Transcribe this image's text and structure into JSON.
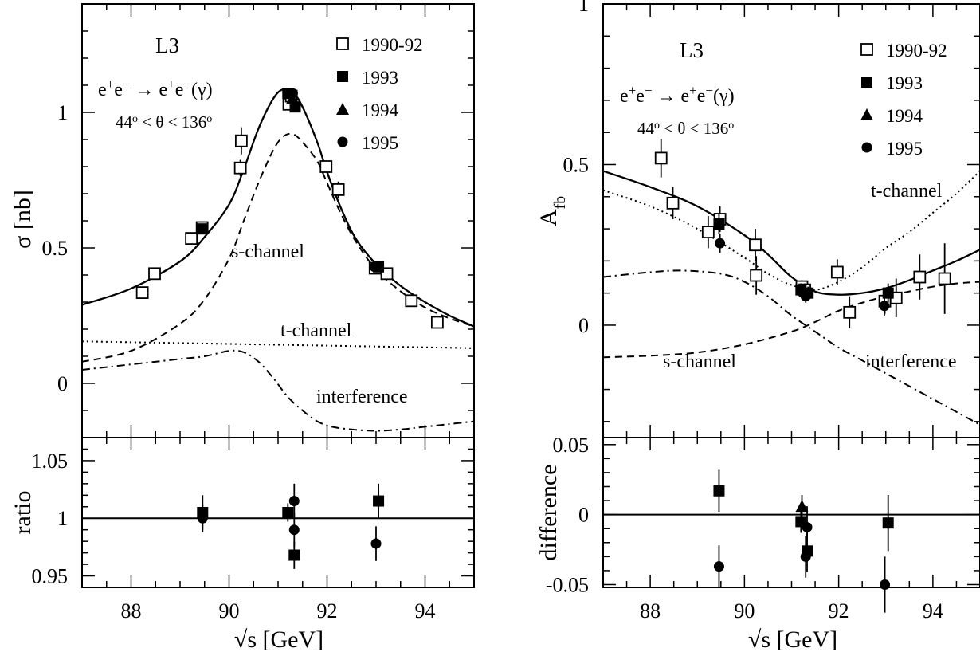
{
  "chart_data": [
    {
      "type": "line",
      "id": "left",
      "label_experiment": "L3",
      "process": {
        "base": "e",
        "arrow": "→",
        "suffix": "(γ)"
      },
      "cut": {
        "a": "44",
        "mid": " < θ < 136",
        "deg": "o"
      },
      "legend": {
        "placement": "top-right",
        "entries": [
          {
            "name": "1990-92",
            "marker": "open-square"
          },
          {
            "name": "1993",
            "marker": "filled-square"
          },
          {
            "name": "1994",
            "marker": "filled-triangle"
          },
          {
            "name": "1995",
            "marker": "filled-circle"
          }
        ]
      },
      "ylabel": "σ [nb]",
      "xlim": [
        87,
        95
      ],
      "ylim": [
        -0.2,
        1.4
      ],
      "xticks": [
        "88",
        "90",
        "92",
        "94"
      ],
      "yticks": [
        "0",
        "0.5",
        "1"
      ],
      "curve_labels": {
        "s": "s-channel",
        "t": "t-channel",
        "i": "interference"
      },
      "series": [
        {
          "name": "total",
          "style": "solid",
          "x": [
            87,
            88,
            89,
            89.5,
            90,
            90.3,
            90.6,
            90.9,
            91.1,
            91.3,
            91.5,
            91.8,
            92.0,
            92.3,
            92.6,
            93.0,
            93.5,
            94.0,
            94.5,
            95.0
          ],
          "y": [
            0.29,
            0.35,
            0.45,
            0.54,
            0.66,
            0.79,
            0.94,
            1.05,
            1.085,
            1.075,
            1.02,
            0.89,
            0.78,
            0.64,
            0.53,
            0.44,
            0.36,
            0.3,
            0.25,
            0.21
          ]
        },
        {
          "name": "s-channel",
          "style": "dashed",
          "x": [
            87,
            88,
            89,
            89.5,
            90,
            90.3,
            90.6,
            90.9,
            91.1,
            91.3,
            91.5,
            91.8,
            92.0,
            92.3,
            92.6,
            93.0,
            93.5,
            94.0,
            94.5,
            95.0
          ],
          "y": [
            0.08,
            0.12,
            0.22,
            0.31,
            0.46,
            0.6,
            0.74,
            0.86,
            0.91,
            0.92,
            0.89,
            0.82,
            0.74,
            0.62,
            0.52,
            0.42,
            0.34,
            0.28,
            0.24,
            0.21
          ]
        },
        {
          "name": "t-channel",
          "style": "dotted",
          "x": [
            87,
            95
          ],
          "y": [
            0.155,
            0.13
          ]
        },
        {
          "name": "interference",
          "style": "dashdot",
          "x": [
            87,
            88,
            89,
            89.5,
            90,
            90.3,
            90.6,
            90.9,
            91.2,
            91.5,
            91.8,
            92.1,
            92.5,
            93,
            93.5,
            94,
            94.5,
            95
          ],
          "y": [
            0.05,
            0.07,
            0.09,
            0.1,
            0.12,
            0.115,
            0.08,
            0.02,
            -0.05,
            -0.1,
            -0.14,
            -0.16,
            -0.17,
            -0.175,
            -0.17,
            -0.16,
            -0.15,
            -0.14
          ]
        }
      ],
      "points": [
        {
          "x": 88.23,
          "y": 0.335,
          "err": 0.02,
          "marker": "open-square"
        },
        {
          "x": 88.48,
          "y": 0.405,
          "err": 0.015,
          "marker": "open-square"
        },
        {
          "x": 89.23,
          "y": 0.535,
          "err": 0.02,
          "marker": "open-square"
        },
        {
          "x": 89.45,
          "y": 0.575,
          "err": 0.015,
          "marker": "open-square"
        },
        {
          "x": 90.23,
          "y": 0.795,
          "err": 0.03,
          "marker": "open-square"
        },
        {
          "x": 90.25,
          "y": 0.895,
          "err": 0.05,
          "marker": "open-square"
        },
        {
          "x": 91.22,
          "y": 1.03,
          "err": 0.015,
          "marker": "open-square"
        },
        {
          "x": 91.27,
          "y": 1.06,
          "err": 0.015,
          "marker": "open-square"
        },
        {
          "x": 91.98,
          "y": 0.8,
          "err": 0.02,
          "marker": "open-square"
        },
        {
          "x": 92.23,
          "y": 0.715,
          "err": 0.03,
          "marker": "open-square"
        },
        {
          "x": 92.98,
          "y": 0.425,
          "err": 0.015,
          "marker": "open-square"
        },
        {
          "x": 93.22,
          "y": 0.405,
          "err": 0.015,
          "marker": "open-square"
        },
        {
          "x": 93.72,
          "y": 0.305,
          "err": 0.015,
          "marker": "open-square"
        },
        {
          "x": 94.25,
          "y": 0.225,
          "err": 0.015,
          "marker": "open-square"
        },
        {
          "x": 89.46,
          "y": 0.57,
          "err": 0.01,
          "marker": "filled-square"
        },
        {
          "x": 91.2,
          "y": 1.07,
          "err": 0.01,
          "marker": "filled-square"
        },
        {
          "x": 91.35,
          "y": 1.02,
          "err": 0.01,
          "marker": "filled-square"
        },
        {
          "x": 93.05,
          "y": 0.43,
          "err": 0.01,
          "marker": "filled-square"
        },
        {
          "x": 91.29,
          "y": 1.05,
          "err": 0.01,
          "marker": "filled-triangle"
        },
        {
          "x": 91.3,
          "y": 1.07,
          "err": 0.01,
          "marker": "filled-circle"
        },
        {
          "x": 92.97,
          "y": 0.43,
          "err": 0.01,
          "marker": "filled-circle"
        }
      ],
      "sub": {
        "ylabel": "ratio",
        "ylim": [
          0.94,
          1.07
        ],
        "yticks": [
          "0.95",
          "1",
          "1.05"
        ],
        "ref": 1,
        "points": [
          {
            "x": 89.46,
            "y": 1.005,
            "err": 0.015,
            "marker": "filled-square"
          },
          {
            "x": 89.46,
            "y": 1.0,
            "err": 0.012,
            "marker": "filled-circle"
          },
          {
            "x": 91.2,
            "y": 1.005,
            "err": 0.008,
            "marker": "filled-square"
          },
          {
            "x": 91.33,
            "y": 1.015,
            "err": 0.015,
            "marker": "filled-circle"
          },
          {
            "x": 91.33,
            "y": 0.99,
            "err": 0.015,
            "marker": "filled-circle"
          },
          {
            "x": 91.33,
            "y": 0.968,
            "err": 0.012,
            "marker": "filled-square"
          },
          {
            "x": 93.0,
            "y": 0.978,
            "err": 0.015,
            "marker": "filled-circle"
          },
          {
            "x": 93.05,
            "y": 1.015,
            "err": 0.015,
            "marker": "filled-square"
          }
        ]
      },
      "xlabel": "√s [GeV]"
    },
    {
      "type": "line",
      "id": "right",
      "label_experiment": "L3",
      "process": {
        "base": "e",
        "arrow": "→",
        "suffix": "(γ)"
      },
      "cut": {
        "a": "44",
        "mid": " < θ < 136",
        "deg": "o"
      },
      "legend": {
        "placement": "top-right",
        "entries": [
          {
            "name": "1990-92",
            "marker": "open-square"
          },
          {
            "name": "1993",
            "marker": "filled-square"
          },
          {
            "name": "1994",
            "marker": "filled-triangle"
          },
          {
            "name": "1995",
            "marker": "filled-circle"
          }
        ]
      },
      "ylabel": "A",
      "ylabel_sub": "fb",
      "xlim": [
        87,
        95
      ],
      "ylim": [
        -0.35,
        1.0
      ],
      "xticks": [
        "88",
        "90",
        "92",
        "94"
      ],
      "yticks": [
        "0",
        "0.5",
        "1"
      ],
      "curve_labels": {
        "s": "s-channel",
        "t": "t-channel",
        "i": "interference"
      },
      "series": [
        {
          "name": "total",
          "style": "solid",
          "x": [
            87,
            88,
            89,
            90,
            90.5,
            91,
            91.5,
            92,
            92.5,
            93,
            93.5,
            94,
            94.5,
            95
          ],
          "y": [
            0.48,
            0.43,
            0.37,
            0.28,
            0.22,
            0.15,
            0.105,
            0.095,
            0.1,
            0.115,
            0.14,
            0.17,
            0.2,
            0.235
          ]
        },
        {
          "name": "t-channel",
          "style": "dotted",
          "x": [
            87,
            88,
            89,
            90,
            90.5,
            91,
            91.5,
            92,
            92.5,
            93,
            93.5,
            94,
            94.5,
            95
          ],
          "y": [
            0.42,
            0.37,
            0.3,
            0.21,
            0.16,
            0.125,
            0.11,
            0.135,
            0.18,
            0.24,
            0.29,
            0.35,
            0.41,
            0.48
          ]
        },
        {
          "name": "s-channel",
          "style": "dashed",
          "x": [
            87,
            88,
            89,
            90,
            91,
            91.5,
            92,
            92.5,
            93,
            93.5,
            94,
            94.5,
            95
          ],
          "y": [
            -0.1,
            -0.095,
            -0.085,
            -0.06,
            -0.02,
            0.01,
            0.045,
            0.07,
            0.09,
            0.105,
            0.12,
            0.13,
            0.135
          ]
        },
        {
          "name": "interference",
          "style": "dashdot",
          "x": [
            87,
            88,
            88.7,
            89.5,
            90,
            90.5,
            91,
            91.5,
            92,
            92.5,
            93,
            93.5,
            94,
            94.5,
            95
          ],
          "y": [
            0.15,
            0.165,
            0.17,
            0.16,
            0.135,
            0.09,
            0.03,
            -0.02,
            -0.07,
            -0.11,
            -0.15,
            -0.19,
            -0.23,
            -0.27,
            -0.31
          ]
        }
      ],
      "points": [
        {
          "x": 88.23,
          "y": 0.52,
          "err": 0.06,
          "marker": "open-square"
        },
        {
          "x": 88.48,
          "y": 0.38,
          "err": 0.05,
          "marker": "open-square"
        },
        {
          "x": 89.23,
          "y": 0.29,
          "err": 0.05,
          "marker": "open-square"
        },
        {
          "x": 89.48,
          "y": 0.33,
          "err": 0.04,
          "marker": "open-square"
        },
        {
          "x": 90.23,
          "y": 0.25,
          "err": 0.05,
          "marker": "open-square"
        },
        {
          "x": 90.25,
          "y": 0.155,
          "err": 0.06,
          "marker": "open-square"
        },
        {
          "x": 91.22,
          "y": 0.12,
          "err": 0.02,
          "marker": "open-square"
        },
        {
          "x": 91.28,
          "y": 0.11,
          "err": 0.02,
          "marker": "open-square"
        },
        {
          "x": 91.97,
          "y": 0.165,
          "err": 0.04,
          "marker": "open-square"
        },
        {
          "x": 92.23,
          "y": 0.04,
          "err": 0.05,
          "marker": "open-square"
        },
        {
          "x": 92.98,
          "y": 0.075,
          "err": 0.04,
          "marker": "open-square"
        },
        {
          "x": 93.22,
          "y": 0.085,
          "err": 0.06,
          "marker": "open-square"
        },
        {
          "x": 93.72,
          "y": 0.15,
          "err": 0.07,
          "marker": "open-square"
        },
        {
          "x": 94.25,
          "y": 0.145,
          "err": 0.11,
          "marker": "open-square"
        },
        {
          "x": 89.46,
          "y": 0.315,
          "err": 0.03,
          "marker": "filled-square"
        },
        {
          "x": 91.2,
          "y": 0.11,
          "err": 0.02,
          "marker": "filled-square"
        },
        {
          "x": 91.35,
          "y": 0.1,
          "err": 0.02,
          "marker": "filled-square"
        },
        {
          "x": 93.05,
          "y": 0.1,
          "err": 0.03,
          "marker": "filled-square"
        },
        {
          "x": 91.29,
          "y": 0.105,
          "err": 0.02,
          "marker": "filled-triangle"
        },
        {
          "x": 89.48,
          "y": 0.255,
          "err": 0.03,
          "marker": "filled-circle"
        },
        {
          "x": 91.3,
          "y": 0.09,
          "err": 0.02,
          "marker": "filled-circle"
        },
        {
          "x": 92.97,
          "y": 0.06,
          "err": 0.03,
          "marker": "filled-circle"
        }
      ],
      "sub": {
        "ylabel": "difference",
        "ylim": [
          -0.052,
          0.055
        ],
        "yticks": [
          "-0.05",
          "0",
          "0.05"
        ],
        "ref": 0,
        "points": [
          {
            "x": 89.46,
            "y": 0.017,
            "err": 0.015,
            "marker": "filled-square"
          },
          {
            "x": 89.46,
            "y": -0.037,
            "err": 0.015,
            "marker": "filled-circle"
          },
          {
            "x": 91.2,
            "y": -0.005,
            "err": 0.008,
            "marker": "filled-square"
          },
          {
            "x": 91.22,
            "y": 0.006,
            "err": 0.008,
            "marker": "filled-triangle"
          },
          {
            "x": 91.33,
            "y": -0.009,
            "err": 0.015,
            "marker": "filled-circle"
          },
          {
            "x": 91.33,
            "y": -0.026,
            "err": 0.015,
            "marker": "filled-square"
          },
          {
            "x": 91.3,
            "y": -0.03,
            "err": 0.015,
            "marker": "filled-circle"
          },
          {
            "x": 92.98,
            "y": -0.05,
            "err": 0.02,
            "marker": "filled-circle"
          },
          {
            "x": 93.05,
            "y": -0.006,
            "err": 0.02,
            "marker": "filled-square"
          }
        ]
      },
      "xlabel": "√s [GeV]"
    }
  ]
}
